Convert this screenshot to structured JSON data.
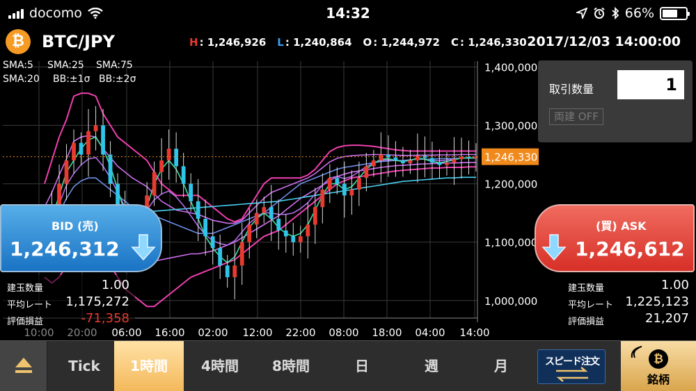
{
  "status_bar": {
    "carrier": "docomo",
    "time": "14:32",
    "battery": "66%",
    "battery_level": 0.66
  },
  "header": {
    "pair": "BTC/JPY",
    "ohlc": [
      {
        "key": "H",
        "value": "1,246,926",
        "color": "#e83a2e"
      },
      {
        "key": "L",
        "value": "1,240,864",
        "color": "#3a9ef0"
      },
      {
        "key": "O",
        "value": "1,244,972",
        "color": "#ffffff"
      },
      {
        "key": "C",
        "value": "1,246,330",
        "color": "#ffffff"
      }
    ],
    "datetime": "2017/12/03 14:00:00"
  },
  "legend": [
    {
      "label": "SMA:5",
      "color": "#3fe0a0"
    },
    {
      "label": "SMA:25",
      "color": "#6f8fe8"
    },
    {
      "label": "SMA:75",
      "color": "#49d0f0"
    },
    {
      "label": "SMA:20",
      "color": "#b06fe8"
    },
    {
      "label": "BB:±1σ",
      "color": "#d070f0"
    },
    {
      "label": "BB:±2σ",
      "color": "#f040b0"
    }
  ],
  "chart_data": {
    "type": "candlestick",
    "y_ticks": [
      "1,400,000",
      "1,300,000",
      "1,200,000",
      "1,100,000",
      "1,000,000"
    ],
    "x_ticks": [
      "10:00",
      "20:00",
      "06:00",
      "16:00",
      "02:00",
      "12:00",
      "22:00",
      "08:00",
      "18:00",
      "04:00",
      "14:00"
    ],
    "ylim": [
      970000,
      1410000
    ],
    "current_price": "1,246,330",
    "current_value": 1246330,
    "close_path": [
      1110000,
      1150000,
      1200000,
      1240000,
      1270000,
      1250000,
      1290000,
      1300000,
      1250000,
      1200000,
      1150000,
      1120000,
      1100000,
      1130000,
      1180000,
      1220000,
      1240000,
      1260000,
      1230000,
      1200000,
      1170000,
      1140000,
      1110000,
      1090000,
      1060000,
      1040000,
      1060000,
      1100000,
      1130000,
      1150000,
      1160000,
      1140000,
      1120000,
      1110000,
      1100000,
      1110000,
      1130000,
      1160000,
      1190000,
      1210000,
      1200000,
      1180000,
      1190000,
      1210000,
      1230000,
      1240000,
      1250000,
      1245000,
      1240000,
      1235000,
      1240000,
      1248000,
      1244000,
      1236000,
      1232000,
      1236000,
      1242000,
      1246000,
      1244000,
      1246330
    ],
    "sma5": [
      1110000,
      1140000,
      1180000,
      1220000,
      1240000,
      1260000,
      1275000,
      1280000,
      1260000,
      1230000,
      1190000,
      1150000,
      1120000,
      1125000,
      1160000,
      1200000,
      1225000,
      1240000,
      1225000,
      1200000,
      1170000,
      1140000,
      1110000,
      1090000,
      1075000,
      1065000,
      1075000,
      1100000,
      1125000,
      1140000,
      1150000,
      1140000,
      1125000,
      1115000,
      1110000,
      1115000,
      1130000,
      1155000,
      1180000,
      1200000,
      1200000,
      1190000,
      1195000,
      1210000,
      1225000,
      1235000,
      1242000,
      1243000,
      1240000,
      1238000,
      1240000,
      1244000,
      1242000,
      1238000,
      1236000,
      1238000,
      1241000,
      1244000,
      1244000,
      1245000
    ],
    "sma25": [
      1120000,
      1130000,
      1150000,
      1175000,
      1195000,
      1205000,
      1210000,
      1210000,
      1200000,
      1190000,
      1180000,
      1170000,
      1160000,
      1155000,
      1150000,
      1145000,
      1140000,
      1135000,
      1130000,
      1125000,
      1120000,
      1115000,
      1115000,
      1115000,
      1120000,
      1125000,
      1130000,
      1135000,
      1140000,
      1145000,
      1150000,
      1160000,
      1170000,
      1180000,
      1190000,
      1200000,
      1205000,
      1210000,
      1215000,
      1220000,
      1225000,
      1228000,
      1230000,
      1232000,
      1234000,
      1236000,
      1238000,
      1239000,
      1240000,
      1240000,
      1241000,
      1242000,
      1242000,
      1242000,
      1243000,
      1243000,
      1243000,
      1244000,
      1244000,
      1244000
    ],
    "sma75": [
      1140000,
      1140000,
      1140000,
      1141000,
      1142000,
      1143000,
      1144000,
      1145000,
      1146000,
      1147000,
      1148000,
      1149000,
      1150000,
      1151000,
      1152000,
      1153000,
      1154000,
      1155000,
      1156000,
      1157000,
      1158000,
      1159000,
      1160000,
      1161000,
      1162000,
      1163000,
      1164000,
      1165000,
      1166000,
      1167000,
      1168000,
      1169000,
      1170000,
      1172000,
      1174000,
      1176000,
      1178000,
      1180000,
      1182000,
      1184000,
      1186000,
      1188000,
      1190000,
      1192000,
      1194000,
      1196000,
      1198000,
      1200000,
      1202000,
      1204000,
      1205000,
      1206000,
      1207000,
      1208000,
      1209000,
      1210000,
      1210000,
      1211000,
      1211000,
      1211000
    ],
    "bb2_upper": [
      1200000,
      1240000,
      1280000,
      1310000,
      1350000,
      1355000,
      1355000,
      1350000,
      1320000,
      1300000,
      1280000,
      1270000,
      1260000,
      1250000,
      1240000,
      1220000,
      1200000,
      1190000,
      1180000,
      1180000,
      1180000,
      1180000,
      1170000,
      1160000,
      1150000,
      1140000,
      1135000,
      1140000,
      1160000,
      1180000,
      1200000,
      1210000,
      1210000,
      1210000,
      1210000,
      1210000,
      1215000,
      1225000,
      1240000,
      1255000,
      1262000,
      1265000,
      1266000,
      1266000,
      1265000,
      1264000,
      1262000,
      1260000,
      1258000,
      1257000,
      1256000,
      1256000,
      1256000,
      1256000,
      1256000,
      1256000,
      1256000,
      1256000,
      1256000,
      1256000
    ],
    "bb2_lower": [
      1040000,
      1030000,
      1040000,
      1060000,
      1080000,
      1090000,
      1100000,
      1100000,
      1080000,
      1060000,
      1040000,
      1020000,
      1010000,
      1000000,
      990000,
      990000,
      1000000,
      1010000,
      1020000,
      1030000,
      1040000,
      1045000,
      1050000,
      1055000,
      1060000,
      1065000,
      1070000,
      1080000,
      1090000,
      1100000,
      1110000,
      1115000,
      1120000,
      1130000,
      1140000,
      1150000,
      1160000,
      1170000,
      1180000,
      1190000,
      1200000,
      1205000,
      1210000,
      1212000,
      1214000,
      1216000,
      1218000,
      1220000,
      1222000,
      1223000,
      1224000,
      1225000,
      1226000,
      1227000,
      1227000,
      1228000,
      1228000,
      1228000,
      1229000,
      1229000
    ]
  },
  "order_panel": {
    "qty_label": "取引数量",
    "qty_value": "1",
    "hedge_label": "両建 OFF"
  },
  "bid": {
    "title": "BID (売)",
    "price": "1,246,312",
    "rows": [
      {
        "label": "建玉数量",
        "value": "1.00",
        "negative": false
      },
      {
        "label": "平均レート",
        "value": "1,175,272",
        "negative": false
      },
      {
        "label": "評価損益",
        "value": "-71,358",
        "negative": true
      }
    ]
  },
  "ask": {
    "title": "(買) ASK",
    "price": "1,246,612",
    "rows": [
      {
        "label": "建玉数量",
        "value": "1.00",
        "negative": false
      },
      {
        "label": "平均レート",
        "value": "1,225,123",
        "negative": false
      },
      {
        "label": "評価損益",
        "value": "21,207",
        "negative": false
      }
    ]
  },
  "bottom_bar": {
    "tabs": [
      {
        "label": "Tick",
        "active": false
      },
      {
        "label": "1時間",
        "active": true
      },
      {
        "label": "4時間",
        "active": false
      },
      {
        "label": "8時間",
        "active": false
      },
      {
        "label": "日",
        "active": false
      },
      {
        "label": "週",
        "active": false
      },
      {
        "label": "月",
        "active": false
      }
    ],
    "speed_order": "スピード注文",
    "brand": "銘柄"
  },
  "colors": {
    "bid_blue": "#1a73c4",
    "ask_red": "#d73027",
    "current_price_tag": "#f08a1c",
    "active_tab": "#f4b85a"
  }
}
